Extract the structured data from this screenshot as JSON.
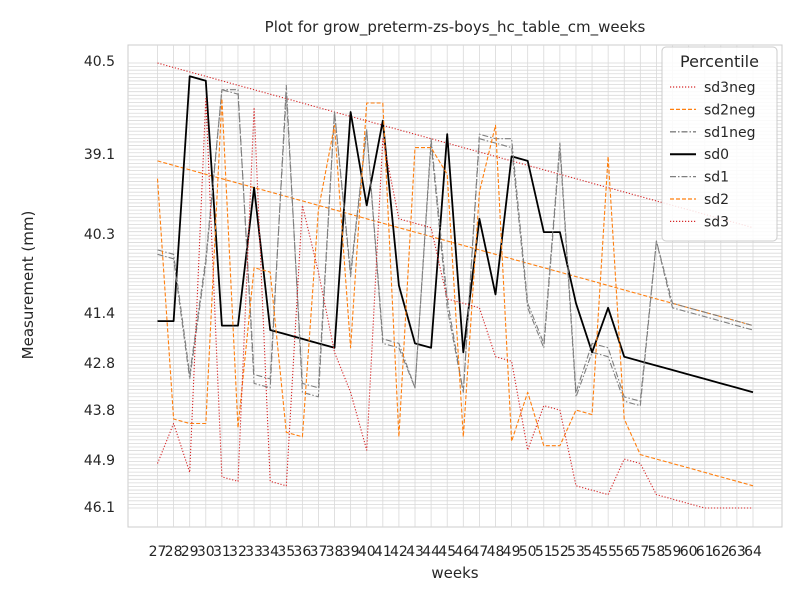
{
  "chart_data": {
    "type": "line",
    "title": "Plot for grow_preterm-zs-boys_hc_table_cm_weeks",
    "xlabel": "weeks",
    "ylabel": "Measurement (mm)",
    "x": [
      27,
      28,
      29,
      30,
      31,
      32,
      33,
      34,
      35,
      36,
      37,
      38,
      39,
      40,
      41,
      42,
      43,
      44,
      45,
      46,
      47,
      48,
      49,
      50,
      51,
      52,
      53,
      54,
      55,
      56,
      57,
      58,
      59,
      60,
      61,
      62,
      63,
      64
    ],
    "x_tick_labels": [
      "27",
      "28",
      "29",
      "30",
      "31",
      "32",
      "33",
      "34",
      "35",
      "36",
      "37",
      "38",
      "39",
      "40",
      "41",
      "42",
      "43",
      "44",
      "45",
      "46",
      "47",
      "48",
      "49",
      "50",
      "51",
      "52",
      "53",
      "54",
      "55",
      "56",
      "57",
      "58",
      "59",
      "60",
      "61",
      "62",
      "63",
      "64"
    ],
    "y_tick_labels": [
      "39.1",
      "40.3",
      "41.4",
      "42.8",
      "43.8",
      "44.9",
      "46.1"
    ],
    "y_tick_labels_secondary": [
      "40.5"
    ],
    "grid": true,
    "legend": {
      "title": "Percentile",
      "placement": "top-right",
      "entries": [
        "sd3neg",
        "sd2neg",
        "sd1neg",
        "sd0",
        "sd1",
        "sd2",
        "sd3"
      ]
    },
    "series": [
      {
        "name": "sd3neg",
        "color": "#d62728",
        "style": "dotted",
        "values": [
          0.0,
          0.01,
          0.02,
          0.03,
          0.04,
          0.05,
          0.06,
          0.07,
          0.08,
          0.09,
          0.1,
          0.11,
          0.12,
          0.13,
          0.14,
          0.15,
          0.16,
          0.17,
          0.18,
          0.19,
          0.2,
          0.21,
          0.22,
          0.23,
          0.24,
          0.25,
          0.26,
          0.27,
          0.28,
          0.29,
          0.3,
          0.31,
          0.32,
          0.33,
          0.34,
          0.35,
          0.36,
          0.37
        ]
      },
      {
        "name": "sd2neg",
        "color": "#ff7f0e",
        "style": "dashed",
        "values": [
          0.22,
          0.23,
          0.24,
          0.25,
          0.26,
          0.27,
          0.28,
          0.29,
          0.3,
          0.31,
          0.32,
          0.33,
          0.34,
          0.35,
          0.36,
          0.37,
          0.38,
          0.39,
          0.4,
          0.41,
          0.42,
          0.43,
          0.44,
          0.45,
          0.46,
          0.47,
          0.48,
          0.49,
          0.5,
          0.51,
          0.52,
          0.53,
          0.54,
          0.55,
          0.56,
          0.57,
          0.58,
          0.59
        ]
      },
      {
        "name": "sd1neg",
        "color": "#7f7f7f",
        "style": "dashdot",
        "values": [
          0.42,
          0.43,
          0.7,
          0.44,
          0.06,
          0.07,
          0.7,
          0.71,
          0.07,
          0.72,
          0.73,
          0.11,
          0.48,
          0.15,
          0.63,
          0.64,
          0.73,
          0.18,
          0.55,
          0.74,
          0.17,
          0.18,
          0.19,
          0.55,
          0.64,
          0.19,
          0.75,
          0.65,
          0.66,
          0.76,
          0.77,
          0.4,
          0.55,
          0.56,
          0.57,
          0.58,
          0.59,
          0.6
        ]
      },
      {
        "name": "sd0",
        "color": "#000000",
        "style": "solid",
        "values": [
          0.58,
          0.58,
          0.03,
          0.04,
          0.59,
          0.59,
          0.28,
          0.6,
          0.61,
          0.62,
          0.63,
          0.64,
          0.11,
          0.32,
          0.13,
          0.5,
          0.63,
          0.64,
          0.16,
          0.65,
          0.35,
          0.52,
          0.21,
          0.22,
          0.38,
          0.38,
          0.54,
          0.65,
          0.55,
          0.66,
          0.67,
          0.68,
          0.69,
          0.7,
          0.71,
          0.72,
          0.73,
          0.74
        ]
      },
      {
        "name": "sd1",
        "color": "#7f7f7f",
        "style": "dashdot",
        "values": [
          0.43,
          0.44,
          0.71,
          0.45,
          0.06,
          0.06,
          0.72,
          0.73,
          0.05,
          0.74,
          0.75,
          0.11,
          0.47,
          0.15,
          0.62,
          0.63,
          0.73,
          0.17,
          0.53,
          0.74,
          0.16,
          0.17,
          0.17,
          0.54,
          0.63,
          0.18,
          0.74,
          0.63,
          0.64,
          0.75,
          0.76,
          0.4,
          0.54,
          0.55,
          0.56,
          0.57,
          0.58,
          0.59
        ]
      },
      {
        "name": "sd2",
        "color": "#ff7f0e",
        "style": "dashed",
        "values": [
          0.26,
          0.8,
          0.81,
          0.81,
          0.08,
          0.82,
          0.46,
          0.47,
          0.83,
          0.84,
          0.33,
          0.14,
          0.64,
          0.09,
          0.09,
          0.84,
          0.19,
          0.19,
          0.25,
          0.84,
          0.29,
          0.14,
          0.85,
          0.74,
          0.86,
          0.86,
          0.78,
          0.79,
          0.21,
          0.8,
          0.88,
          0.89,
          0.9,
          0.91,
          0.92,
          0.93,
          0.94,
          0.95
        ]
      },
      {
        "name": "sd3",
        "color": "#d62728",
        "style": "dotted",
        "values": [
          0.9,
          0.81,
          0.92,
          0.08,
          0.93,
          0.94,
          0.1,
          0.94,
          0.95,
          0.32,
          0.47,
          0.65,
          0.74,
          0.87,
          0.17,
          0.35,
          0.36,
          0.37,
          0.53,
          0.54,
          0.55,
          0.66,
          0.67,
          0.87,
          0.77,
          0.78,
          0.95,
          0.96,
          0.97,
          0.89,
          0.9,
          0.97,
          0.98,
          0.99,
          1.0,
          1.0,
          1.0,
          1.0
        ]
      }
    ]
  }
}
